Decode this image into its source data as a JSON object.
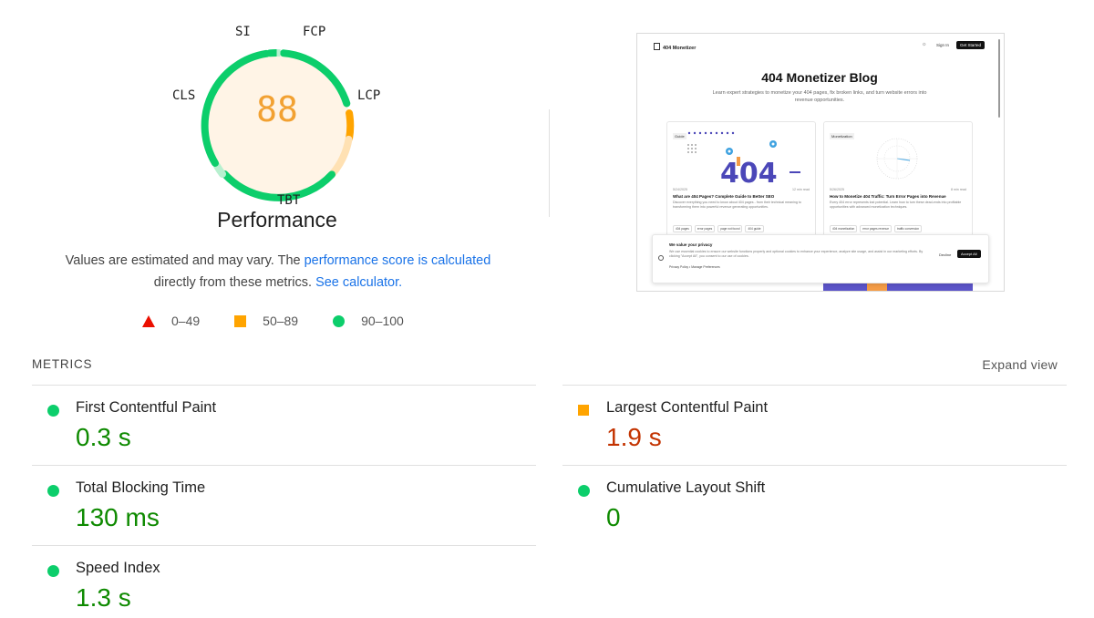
{
  "gauge": {
    "score": "88",
    "title": "Performance",
    "labels": {
      "si": "SI",
      "fcp": "FCP",
      "lcp": "LCP",
      "tbt": "TBT",
      "cls": "CLS"
    },
    "colors": {
      "pass": "#0cce6b",
      "average": "#ffa400",
      "score_text": "#f2a132",
      "fill": "#fff4e6"
    }
  },
  "description": {
    "text_before": "Values are estimated and may vary. The ",
    "link_score": "performance score is calculated",
    "text_middle": " directly from these metrics. ",
    "link_calculator": "See calculator."
  },
  "legend": {
    "fail": "0–49",
    "average": "50–89",
    "pass": "90–100"
  },
  "screenshot": {
    "brand": "404 Monetizer",
    "nav_signin": "Sign In",
    "nav_started": "Get Started",
    "title": "404 Monetizer Blog",
    "subtitle": "Learn expert strategies to monetize your 404 pages, fix broken links, and turn website errors into revenue opportunities.",
    "cards": [
      {
        "tag": "Guide",
        "date": "5/24/2025",
        "read": "12 min read",
        "title": "What are 404 Pages? Complete Guide to Better SEO",
        "desc": "Discover everything you need to know about 404 pages - from their technical meaning to transforming them into powerful revenue generating opportunities.",
        "tags": [
          "404 pages",
          "error pages",
          "page not found",
          "404 guide"
        ]
      },
      {
        "tag": "Monetization",
        "date": "5/26/2025",
        "read": "8 min read",
        "title": "How to Monetize 404 Traffic: Turn Error Pages into Revenue",
        "desc": "Every 404 error represents lost potential. Learn how to turn these dead-ends into profitable opportunities with advanced monetization techniques.",
        "tags": [
          "404 monetization",
          "error pages revenue",
          "traffic conversion"
        ]
      }
    ],
    "cookie": {
      "title": "We value your privacy",
      "text": "We use essential cookies to ensure our website functions properly and optional cookies to enhance your experience, analyze site usage, and assist in our marketing efforts. By clicking \"Accept All\", you consent to our use of cookies.",
      "privacy": "Privacy Policy",
      "manage": "Manage Preferences",
      "decline": "Decline",
      "accept": "Accept All"
    }
  },
  "metrics": {
    "header": "METRICS",
    "expand": "Expand view",
    "items": [
      {
        "title": "First Contentful Paint",
        "value": "0.3 s",
        "status": "pass"
      },
      {
        "title": "Largest Contentful Paint",
        "value": "1.9 s",
        "status": "average"
      },
      {
        "title": "Total Blocking Time",
        "value": "130 ms",
        "status": "pass"
      },
      {
        "title": "Cumulative Layout Shift",
        "value": "0",
        "status": "pass"
      },
      {
        "title": "Speed Index",
        "value": "1.3 s",
        "status": "pass"
      }
    ]
  }
}
